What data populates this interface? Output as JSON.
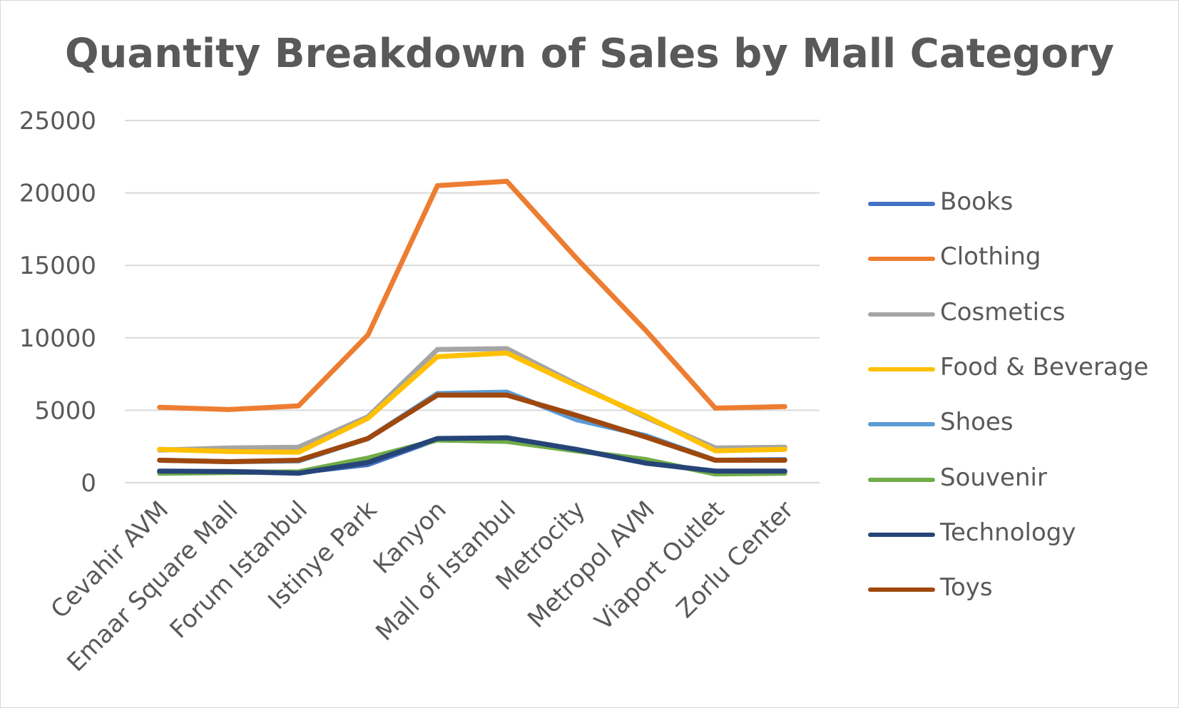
{
  "chart_data": {
    "type": "line",
    "title": "Quantity Breakdown of Sales by Mall Category",
    "xlabel": "",
    "ylabel": "",
    "ylim": [
      0,
      25000
    ],
    "yticks": [
      0,
      5000,
      10000,
      15000,
      20000,
      25000
    ],
    "grid": true,
    "legend_position": "right",
    "categories": [
      "Cevahir AVM",
      "Emaar Square Mall",
      "Forum Istanbul",
      "Istinye Park",
      "Kanyon",
      "Mall of Istanbul",
      "Metrocity",
      "Metropol AVM",
      "Viaport Outlet",
      "Zorlu Center"
    ],
    "series": [
      {
        "name": "Books",
        "color": "#4472C4",
        "values": [
          750,
          780,
          700,
          1250,
          3000,
          3050,
          2300,
          1400,
          750,
          780
        ]
      },
      {
        "name": "Clothing",
        "color": "#ED7D31",
        "values": [
          5200,
          5050,
          5300,
          10200,
          20500,
          20800,
          15500,
          10500,
          5150,
          5250
        ]
      },
      {
        "name": "Cosmetics",
        "color": "#A5A5A5",
        "values": [
          2250,
          2400,
          2450,
          4550,
          9200,
          9250,
          6800,
          4500,
          2400,
          2450
        ]
      },
      {
        "name": "Food & Beverage",
        "color": "#FFC000",
        "values": [
          2300,
          2150,
          2100,
          4450,
          8700,
          8950,
          6700,
          4600,
          2200,
          2300
        ]
      },
      {
        "name": "Shoes",
        "color": "#5B9BD5",
        "values": [
          1550,
          1450,
          1500,
          3050,
          6150,
          6250,
          4350,
          3250,
          1550,
          1600
        ]
      },
      {
        "name": "Souvenir",
        "color": "#70AD47",
        "values": [
          650,
          700,
          750,
          1700,
          2950,
          2850,
          2200,
          1600,
          600,
          650
        ]
      },
      {
        "name": "Technology",
        "color": "#264478",
        "values": [
          800,
          770,
          650,
          1400,
          3050,
          3100,
          2300,
          1350,
          800,
          800
        ]
      },
      {
        "name": "Toys",
        "color": "#9E480E",
        "values": [
          1550,
          1450,
          1550,
          3050,
          6050,
          6050,
          4650,
          3150,
          1550,
          1550
        ]
      }
    ]
  }
}
